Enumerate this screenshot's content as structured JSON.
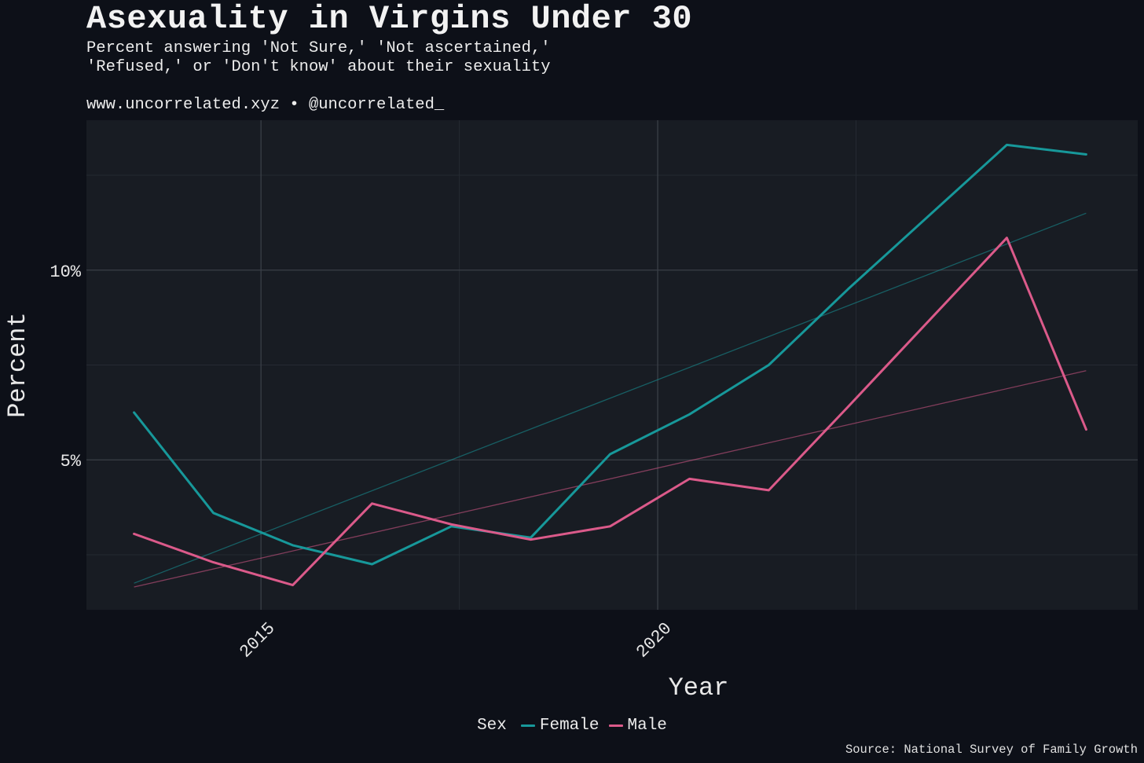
{
  "title": "Asexuality in Virgins Under 30",
  "subtitle_lines": [
    "Percent answering 'Not Sure,' 'Not ascertained,'",
    "'Refused,' or 'Don't know' about their sexuality"
  ],
  "credit": "www.uncorrelated.xyz • @uncorrelated_",
  "caption": "Source: National Survey of Family Growth",
  "legend": {
    "title": "Sex",
    "items": [
      {
        "label": "Female",
        "color": "#17989a"
      },
      {
        "label": "Male",
        "color": "#db5a8a"
      }
    ]
  },
  "chart_data": {
    "type": "line",
    "title": "Asexuality in Virgins Under 30",
    "xlabel": "Year",
    "ylabel": "Percent",
    "xlim": [
      2012.8,
      2026.05
    ],
    "ylim": [
      1.05,
      13.95
    ],
    "x_ticks": [
      {
        "value": 2015,
        "label": "2015"
      },
      {
        "value": 2020,
        "label": "2020"
      }
    ],
    "y_ticks": [
      {
        "value": 5,
        "label": "5%"
      },
      {
        "value": 10,
        "label": "10%"
      }
    ],
    "grid": true,
    "legend_position": "bottom",
    "series": [
      {
        "name": "Female",
        "color": "#17989a",
        "x": [
          2013.4,
          2014.4,
          2015.4,
          2016.4,
          2017.4,
          2018.4,
          2019.4,
          2020.4,
          2021.4,
          2022.4,
          2024.4,
          2025.4
        ],
        "y": [
          6.25,
          3.6,
          2.75,
          2.25,
          3.25,
          2.95,
          5.15,
          6.2,
          7.5,
          9.5,
          13.3,
          13.05
        ]
      },
      {
        "name": "Male",
        "color": "#db5a8a",
        "x": [
          2013.4,
          2014.4,
          2015.4,
          2016.4,
          2017.4,
          2018.4,
          2019.4,
          2020.4,
          2021.4,
          2022.4,
          2024.4,
          2025.4
        ],
        "y": [
          3.05,
          2.3,
          1.7,
          3.85,
          3.3,
          2.9,
          3.25,
          4.5,
          4.2,
          6.4,
          10.85,
          5.8
        ]
      }
    ],
    "trend_lines": [
      {
        "name": "Female",
        "color": "#17989a",
        "x": [
          2013.4,
          2025.4
        ],
        "y": [
          1.75,
          11.5
        ]
      },
      {
        "name": "Male",
        "color": "#db5a8a",
        "x": [
          2013.4,
          2025.4
        ],
        "y": [
          1.65,
          7.35
        ]
      }
    ]
  }
}
